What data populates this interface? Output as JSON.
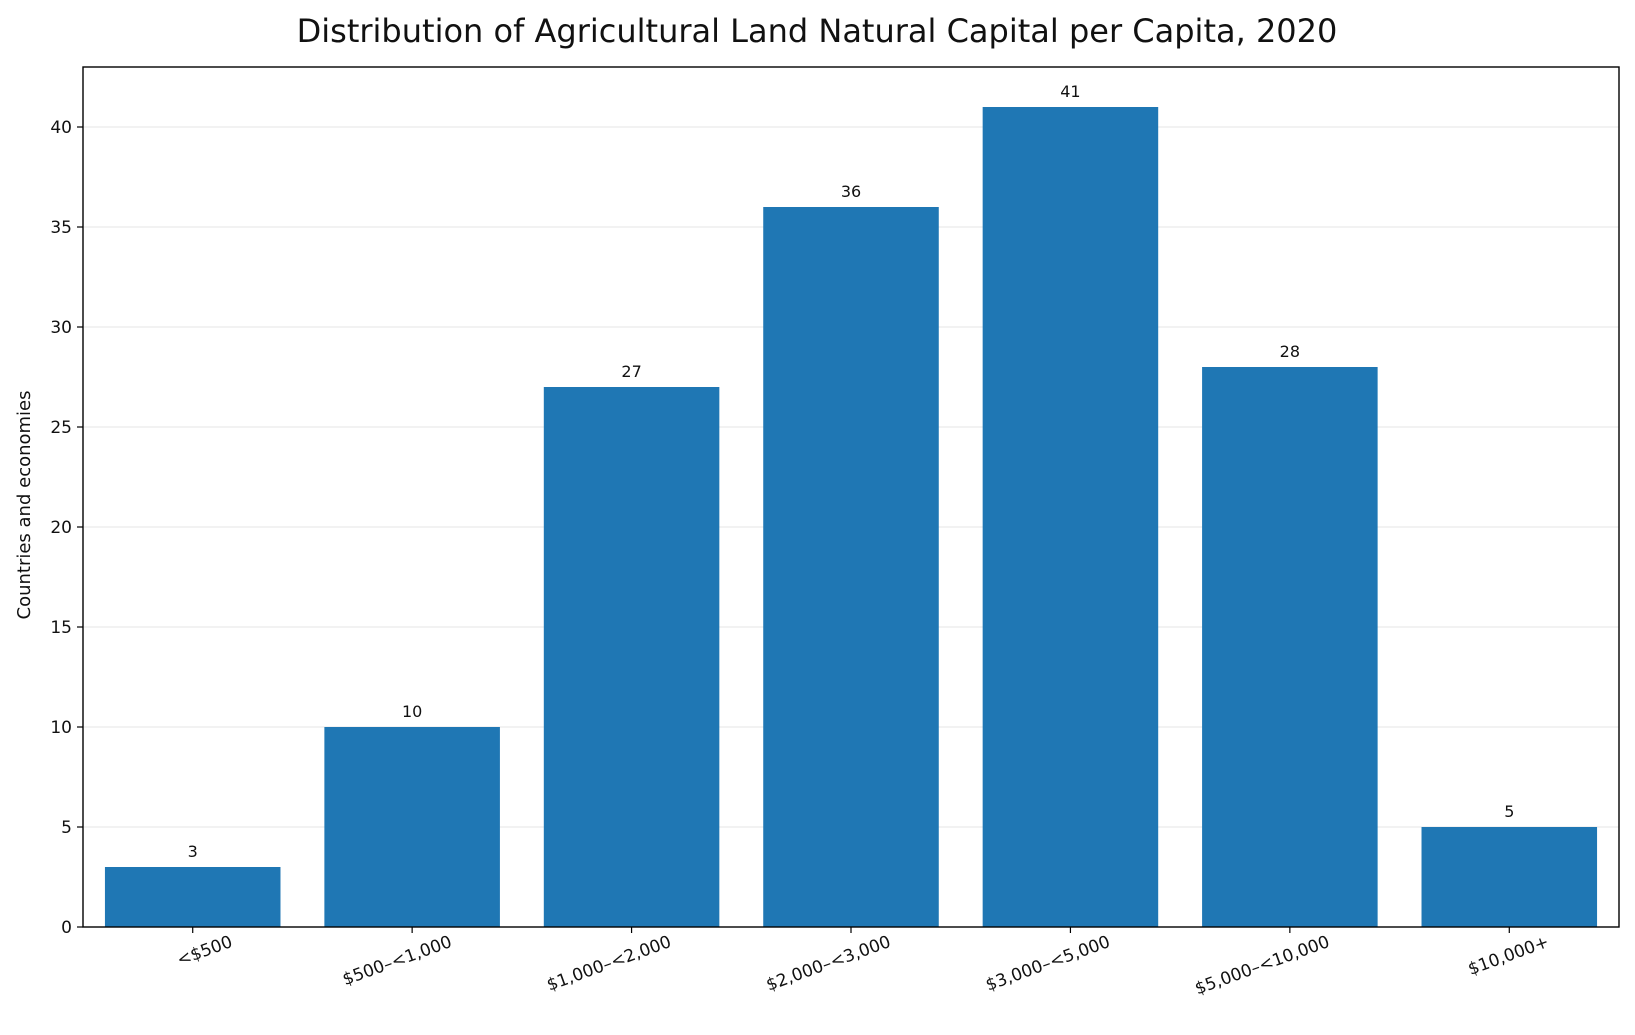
{
  "chart_data": {
    "type": "bar",
    "title": "Distribution of Agricultural Land Natural Capital per Capita, 2020",
    "xlabel": "",
    "ylabel": "Countries and economies",
    "categories": [
      "<$500",
      "$500–<1,000",
      "$1,000–<2,000",
      "$2,000–<3,000",
      "$3,000–<5,000",
      "$5,000–<10,000",
      "$10,000+"
    ],
    "values": [
      3,
      10,
      27,
      36,
      41,
      28,
      5
    ],
    "ylim": [
      0,
      43
    ],
    "yticks": [
      0,
      5,
      10,
      15,
      20,
      25,
      30,
      35,
      40
    ],
    "grid": "horizontal",
    "colors": {
      "bar": "#1f77b4",
      "grid": "#e6e6e6",
      "axis": "#000000"
    }
  }
}
